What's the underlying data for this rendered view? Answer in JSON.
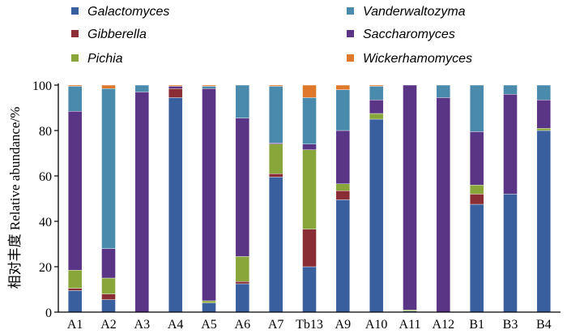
{
  "chart_data": {
    "type": "bar",
    "stacked": true,
    "ylabel": "相对丰度 Relative abundance/%",
    "ylim": [
      0,
      100
    ],
    "yticks": [
      0,
      20,
      40,
      60,
      80,
      100
    ],
    "grid": false,
    "legend_position": "top",
    "categories": [
      "A1",
      "A2",
      "A3",
      "A4",
      "A5",
      "A6",
      "A7",
      "Tb13",
      "A9",
      "A10",
      "A11",
      "A12",
      "B1",
      "B3",
      "B4"
    ],
    "series": [
      {
        "name": "Galactomyces",
        "color": "#3a5f9f",
        "values": [
          9.5,
          5.5,
          0,
          94.5,
          4.0,
          12.5,
          59.5,
          20.0,
          49.5,
          85.0,
          0.5,
          0,
          47.5,
          52.0,
          80.0
        ]
      },
      {
        "name": "Gibberella",
        "color": "#8b2d35",
        "values": [
          1.0,
          2.5,
          0,
          4.0,
          0,
          1.0,
          1.5,
          16.5,
          4.0,
          0,
          0,
          0,
          4.5,
          0,
          0
        ]
      },
      {
        "name": "Pichia",
        "color": "#88a63a",
        "values": [
          8.0,
          7.0,
          0,
          0,
          1.0,
          11.0,
          13.0,
          35.0,
          3.0,
          2.5,
          0.5,
          0,
          4.0,
          0,
          1.0
        ]
      },
      {
        "name": "Saccharomyces",
        "color": "#5b3585",
        "values": [
          70.0,
          13.0,
          97.0,
          1.0,
          93.5,
          61.0,
          0.5,
          2.5,
          23.5,
          6.0,
          99.0,
          94.5,
          23.5,
          44.0,
          12.5
        ]
      },
      {
        "name": "Vanderwaltozyma",
        "color": "#4a8aad",
        "values": [
          11.0,
          70.5,
          3.0,
          0,
          1.0,
          14.5,
          25.0,
          20.5,
          18.0,
          6.0,
          0,
          5.5,
          20.5,
          4.0,
          6.5
        ]
      },
      {
        "name": "Wickerhamomyces",
        "color": "#e0782c",
        "values": [
          0.5,
          1.5,
          0,
          0.5,
          0.5,
          0,
          0.5,
          5.5,
          2.0,
          0.5,
          0,
          0,
          0,
          0,
          0
        ]
      }
    ]
  }
}
